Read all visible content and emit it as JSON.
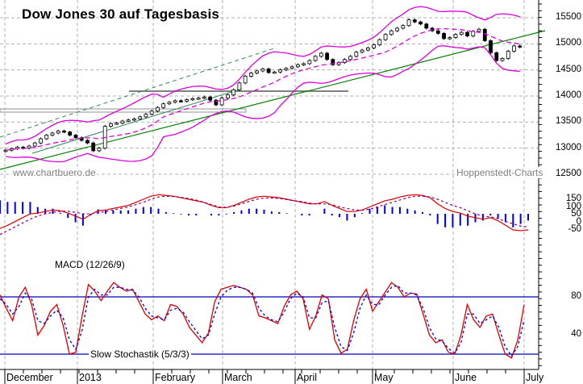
{
  "chart_data": [
    {
      "type": "candlestick",
      "title": "Dow Jones 30 auf Tagesbasis",
      "watermark_left": "www.chartbuero.de",
      "watermark_right": "Hoppenstedt-Charts",
      "ylim": [
        12250,
        15750
      ],
      "yticks": [
        12500,
        13000,
        13500,
        14000,
        14500,
        15000,
        15500
      ],
      "overlays": [
        "Bollinger Bands (magenta)",
        "Moving average (dashed magenta)",
        "Trend lines (green)",
        "Horizontal support lines (gray)"
      ],
      "close_series": [
        12960,
        12990,
        13020,
        13000,
        13040,
        13100,
        13180,
        13250,
        13290,
        13330,
        13310,
        13250,
        13200,
        13150,
        13100,
        12950,
        13000,
        13420,
        13470,
        13480,
        13520,
        13540,
        13560,
        13600,
        13650,
        13710,
        13780,
        13850,
        13880,
        13910,
        13900,
        13930,
        13950,
        13960,
        13980,
        13920,
        13830,
        13960,
        14020,
        14120,
        14250,
        14380,
        14440,
        14480,
        14520,
        14450,
        14460,
        14500,
        14530,
        14560,
        14600,
        14620,
        14680,
        14760,
        14820,
        14700,
        14600,
        14640,
        14700,
        14760,
        14840,
        14880,
        14920,
        14980,
        15080,
        15180,
        15250,
        15300,
        15350,
        15460,
        15420,
        15380,
        15300,
        15250,
        15200,
        15100,
        15120,
        15180,
        15220,
        15150,
        15240,
        15280,
        15060,
        14830,
        14680,
        14720,
        14860,
        14960,
        14940
      ],
      "support_levels": [
        13620,
        14020
      ]
    },
    {
      "type": "line",
      "title": "MACD (12/26/9)",
      "yticks": [
        150,
        100,
        50,
        0,
        -50
      ],
      "ylim": [
        -100,
        190
      ],
      "series": [
        {
          "name": "MACD",
          "color": "#e00000",
          "values": [
            -40,
            -20,
            5,
            30,
            55,
            60,
            70,
            80,
            75,
            60,
            40,
            20,
            50,
            75,
            80,
            90,
            100,
            110,
            130,
            150,
            170,
            180,
            175,
            170,
            160,
            150,
            140,
            130,
            110,
            95,
            95,
            110,
            130,
            150,
            165,
            170,
            165,
            160,
            150,
            140,
            130,
            120,
            120,
            135,
            110,
            90,
            70,
            70,
            80,
            100,
            120,
            140,
            150,
            165,
            175,
            180,
            175,
            160,
            120,
            90,
            70,
            60,
            40,
            30,
            20,
            30,
            10,
            -20,
            -50,
            -55,
            -50
          ]
        },
        {
          "name": "Signal",
          "color": "#800080",
          "values": [
            -80,
            -55,
            -30,
            -5,
            20,
            40,
            55,
            65,
            72,
            72,
            65,
            55,
            55,
            62,
            70,
            80,
            90,
            100,
            115,
            130,
            150,
            165,
            170,
            168,
            162,
            155,
            145,
            130,
            115,
            100,
            97,
            105,
            120,
            135,
            150,
            158,
            158,
            155,
            148,
            140,
            135,
            125,
            120,
            120,
            115,
            100,
            90,
            80,
            78,
            85,
            100,
            115,
            130,
            145,
            160,
            170,
            170,
            165,
            150,
            130,
            110,
            95,
            75,
            55,
            40,
            35,
            25,
            5,
            -10,
            -25,
            -30
          ]
        }
      ]
    },
    {
      "type": "line",
      "title": "Slow Stochastik (5/3/3)",
      "yticks": [
        80,
        40
      ],
      "levels": [
        80,
        20
      ],
      "ylim": [
        5,
        100
      ],
      "series": [
        {
          "name": "%K",
          "color": "#e00000",
          "values": [
            82,
            68,
            55,
            80,
            90,
            72,
            40,
            50,
            65,
            72,
            50,
            20,
            22,
            60,
            93,
            86,
            76,
            86,
            95,
            90,
            86,
            88,
            75,
            62,
            56,
            60,
            55,
            72,
            70,
            62,
            48,
            40,
            32,
            42,
            75,
            88,
            90,
            92,
            90,
            88,
            82,
            60,
            58,
            55,
            52,
            70,
            82,
            86,
            78,
            46,
            60,
            82,
            78,
            35,
            21,
            25,
            55,
            78,
            88,
            65,
            75,
            85,
            95,
            90,
            80,
            84,
            83,
            62,
            40,
            32,
            35,
            22,
            20,
            40,
            72,
            56,
            48,
            60,
            62,
            40,
            20,
            16,
            35,
            72
          ]
        },
        {
          "name": "%D",
          "color": "#0000e0",
          "values": [
            78,
            72,
            62,
            70,
            84,
            78,
            55,
            52,
            60,
            66,
            58,
            35,
            25,
            45,
            80,
            88,
            82,
            82,
            90,
            90,
            88,
            87,
            80,
            68,
            60,
            58,
            56,
            66,
            68,
            64,
            54,
            45,
            36,
            40,
            62,
            80,
            87,
            90,
            90,
            88,
            84,
            68,
            60,
            56,
            54,
            64,
            78,
            84,
            80,
            58,
            58,
            74,
            76,
            48,
            28,
            24,
            42,
            68,
            82,
            72,
            72,
            82,
            90,
            92,
            84,
            84,
            82,
            68,
            48,
            36,
            34,
            26,
            21,
            32,
            62,
            62,
            52,
            56,
            60,
            48,
            28,
            18,
            28,
            56
          ]
        }
      ]
    }
  ],
  "x_axis": {
    "months": [
      "December",
      "2013",
      "February",
      "March",
      "April",
      "May",
      "June",
      "July"
    ]
  }
}
